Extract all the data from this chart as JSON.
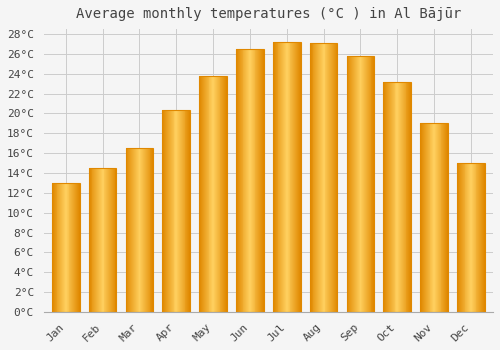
{
  "title": "Average monthly temperatures (°C ) in Al Bājūr",
  "months": [
    "Jan",
    "Feb",
    "Mar",
    "Apr",
    "May",
    "Jun",
    "Jul",
    "Aug",
    "Sep",
    "Oct",
    "Nov",
    "Dec"
  ],
  "temperatures": [
    13,
    14.5,
    16.5,
    20.3,
    23.8,
    26.5,
    27.2,
    27.1,
    25.8,
    23.2,
    19.0,
    15.0
  ],
  "bar_color_main": "#FFAA00",
  "bar_color_light": "#FFD060",
  "bar_color_edge": "#E08800",
  "background_color": "#f5f5f5",
  "plot_bg_color": "#f5f5f5",
  "grid_color": "#cccccc",
  "text_color": "#444444",
  "ytick_max": 28,
  "ytick_step": 2,
  "title_fontsize": 10,
  "tick_fontsize": 8
}
